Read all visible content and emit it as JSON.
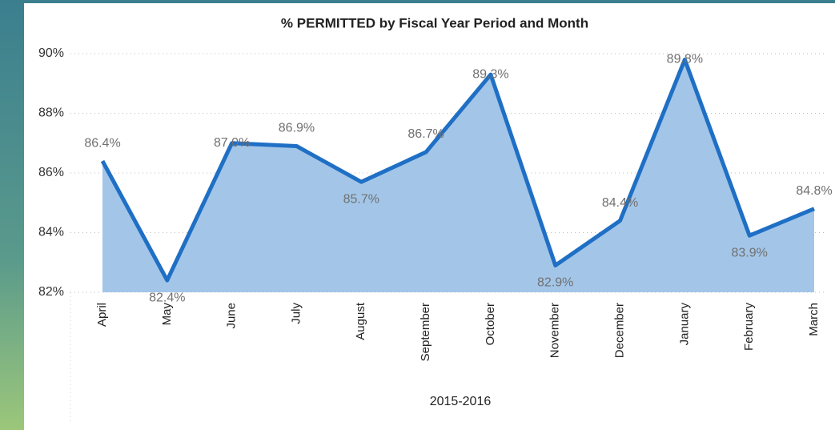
{
  "chart_data": {
    "type": "area",
    "title": "% PERMITTED by Fiscal Year Period and Month",
    "x_label": "2015-2016",
    "categories": [
      "April",
      "May",
      "June",
      "July",
      "August",
      "September",
      "October",
      "November",
      "December",
      "January",
      "February",
      "March"
    ],
    "values": [
      86.4,
      82.4,
      87.0,
      86.9,
      85.7,
      86.7,
      89.3,
      82.9,
      84.4,
      89.8,
      83.9,
      84.8
    ],
    "value_labels": [
      "86.4%",
      "82.4%",
      "87.0%",
      "86.9%",
      "85.7%",
      "86.7%",
      "89.3%",
      "82.9%",
      "84.4%",
      "89.8%",
      "83.9%",
      "84.8%"
    ],
    "color": "#1f6fc5",
    "fill": "#a3c6e8",
    "ylim": [
      82,
      90
    ],
    "yticks": [
      {
        "value": 82,
        "label": "82%"
      },
      {
        "value": 84,
        "label": "84%"
      },
      {
        "value": 86,
        "label": "86%"
      },
      {
        "value": 88,
        "label": "88%"
      },
      {
        "value": 90,
        "label": "90%"
      }
    ],
    "grid": true
  }
}
